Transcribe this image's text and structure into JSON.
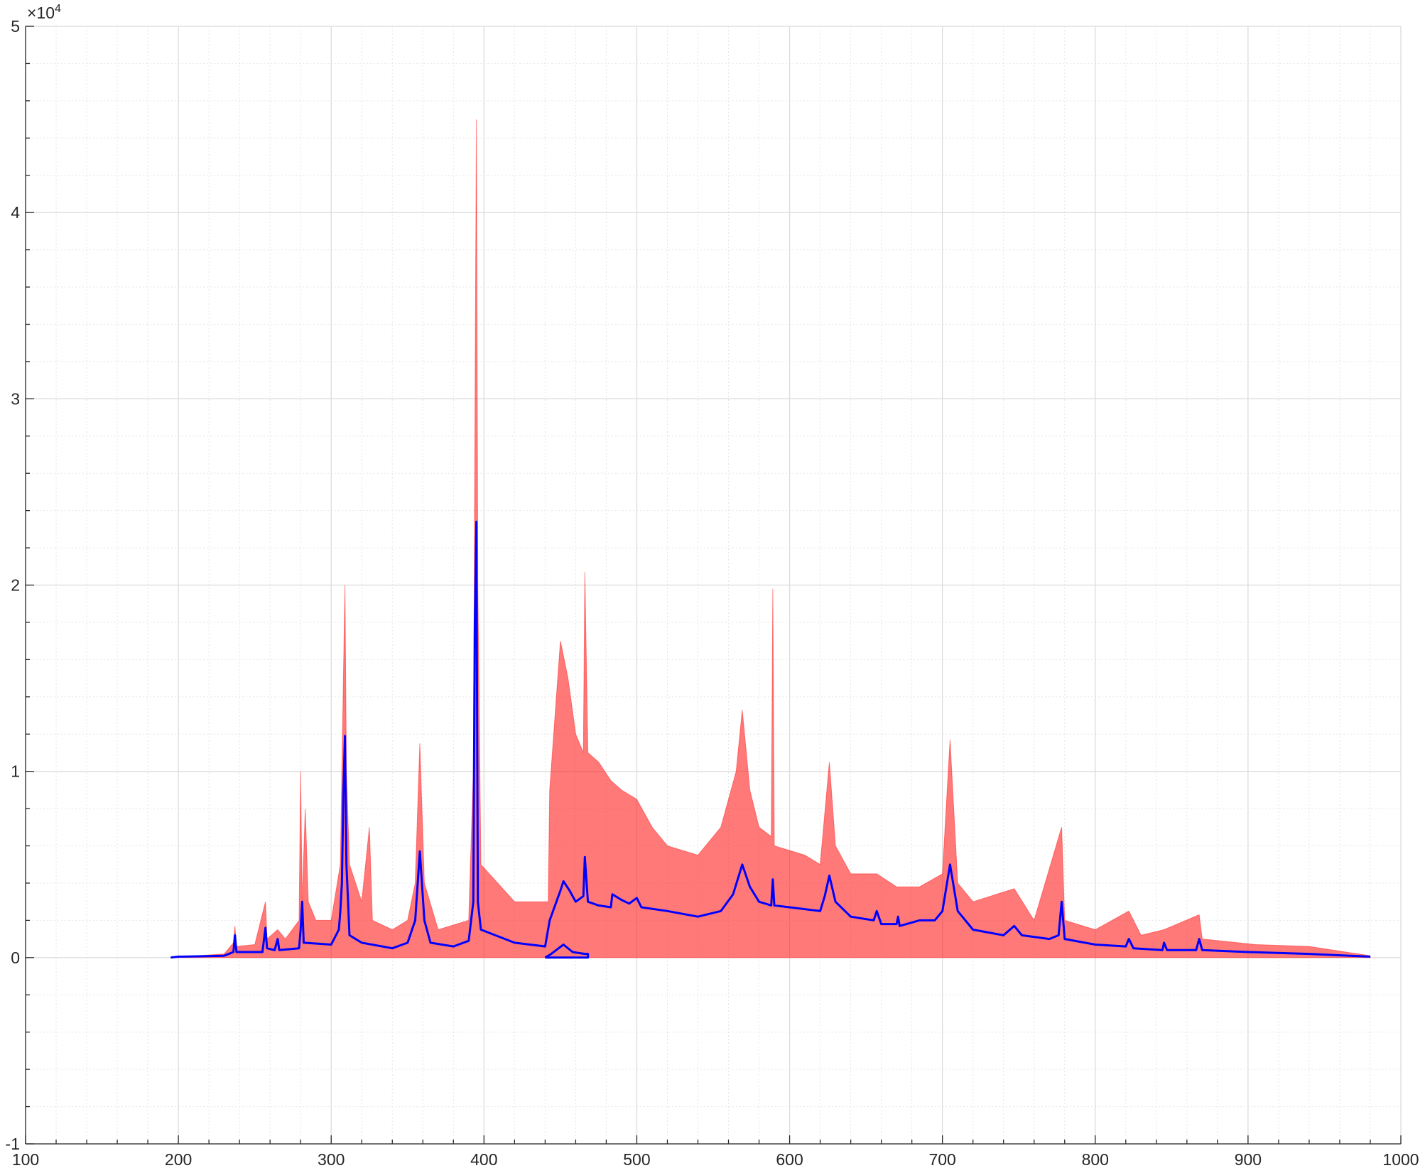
{
  "chart_data": {
    "type": "line",
    "y_multiplier": {
      "base": "×10",
      "exponent": "4"
    },
    "xlim": [
      100,
      1000
    ],
    "xticks": [
      100,
      200,
      300,
      400,
      500,
      600,
      700,
      800,
      900,
      1000
    ],
    "xminorticks": [
      120,
      140,
      160,
      180,
      220,
      240,
      260,
      280,
      320,
      340,
      360,
      380,
      420,
      440,
      460,
      480,
      520,
      540,
      560,
      580,
      620,
      640,
      660,
      680,
      720,
      740,
      760,
      780,
      820,
      840,
      860,
      880,
      920,
      940,
      960,
      980
    ],
    "ylim": [
      -1,
      5
    ],
    "yticks": [
      -1,
      0,
      1,
      2,
      3,
      4,
      5
    ],
    "yminorticks": [
      -0.8,
      -0.6,
      -0.4,
      -0.2,
      0.2,
      0.4,
      0.6,
      0.8,
      1.2,
      1.4,
      1.6,
      1.8,
      2.2,
      2.4,
      2.6,
      2.8,
      3.2,
      3.4,
      3.6,
      3.8,
      4.2,
      4.4,
      4.6,
      4.8
    ],
    "grid": true,
    "minor_grid": true,
    "series": [
      {
        "color": "#ff2020",
        "fill": true,
        "x": [
          195,
          230,
          236,
          237,
          238,
          250,
          257,
          258,
          265,
          270,
          279,
          280,
          281,
          283,
          285,
          290,
          300,
          306,
          308,
          309,
          310,
          312,
          320,
          325,
          327,
          340,
          350,
          355,
          358,
          361,
          370,
          390,
          393,
          395,
          396,
          398,
          420,
          440,
          442,
          443,
          450,
          455,
          460,
          465,
          466,
          468,
          475,
          483,
          490,
          500,
          510,
          520,
          540,
          555,
          565,
          569,
          574,
          580,
          588,
          589,
          590,
          610,
          620,
          626,
          630,
          640,
          657,
          670,
          685,
          700,
          705,
          710,
          720,
          747,
          760,
          778,
          780,
          800,
          822,
          830,
          845,
          868,
          870,
          905,
          940,
          980
        ],
        "values": [
          0,
          0.02,
          0.08,
          0.17,
          0.06,
          0.07,
          0.3,
          0.1,
          0.15,
          0.1,
          0.2,
          1.0,
          0.3,
          0.8,
          0.3,
          0.2,
          0.2,
          0.5,
          1.5,
          2.0,
          1.0,
          0.5,
          0.3,
          0.7,
          0.2,
          0.15,
          0.2,
          0.4,
          1.15,
          0.4,
          0.15,
          0.2,
          1.0,
          4.5,
          2.0,
          0.5,
          0.3,
          0.3,
          0.3,
          0.9,
          1.7,
          1.5,
          1.2,
          1.1,
          2.07,
          1.1,
          1.05,
          0.95,
          0.9,
          0.85,
          0.7,
          0.6,
          0.55,
          0.7,
          1.0,
          1.33,
          0.9,
          0.7,
          0.65,
          1.98,
          0.6,
          0.55,
          0.5,
          1.05,
          0.6,
          0.45,
          0.45,
          0.38,
          0.38,
          0.45,
          1.17,
          0.4,
          0.3,
          0.37,
          0.2,
          0.7,
          0.2,
          0.15,
          0.25,
          0.12,
          0.15,
          0.23,
          0.1,
          0.07,
          0.06,
          0.01
        ]
      },
      {
        "color": "#0000ff",
        "fill": false,
        "x": [
          195,
          200,
          230,
          236,
          237,
          238,
          255,
          257,
          258,
          263,
          265,
          266,
          279,
          280,
          281,
          282,
          300,
          305,
          306,
          307,
          308,
          309,
          310,
          312,
          320,
          340,
          350,
          355,
          358,
          361,
          365,
          380,
          390,
          393,
          394,
          395,
          396,
          398,
          420,
          440,
          443,
          450,
          452,
          456,
          460,
          465,
          466,
          468,
          475,
          483,
          484,
          490,
          495,
          500,
          503,
          520,
          540,
          555,
          563,
          569,
          574,
          580,
          588,
          589,
          590,
          620,
          623,
          626,
          630,
          640,
          655,
          657,
          660,
          670,
          671,
          672,
          685,
          695,
          700,
          705,
          710,
          720,
          740,
          747,
          752,
          770,
          776,
          778,
          780,
          800,
          820,
          822,
          825,
          844,
          845,
          847,
          866,
          868,
          870,
          900,
          940,
          980
        ],
        "values": [
          0,
          0.005,
          0.01,
          0.03,
          0.12,
          0.03,
          0.03,
          0.16,
          0.05,
          0.04,
          0.1,
          0.04,
          0.05,
          0.15,
          0.3,
          0.08,
          0.07,
          0.15,
          0.25,
          0.4,
          0.88,
          1.19,
          0.5,
          0.12,
          0.08,
          0.05,
          0.08,
          0.2,
          0.57,
          0.2,
          0.08,
          0.06,
          0.09,
          0.3,
          1.78,
          2.34,
          0.3,
          0.15,
          0.08,
          0.06,
          0.2,
          0.36,
          0.41,
          0.36,
          0.3,
          0.33,
          0.54,
          0.3,
          0.28,
          0.27,
          0.34,
          0.31,
          0.29,
          0.32,
          0.27,
          0.25,
          0.22,
          0.25,
          0.34,
          0.5,
          0.38,
          0.3,
          0.28,
          0.42,
          0.28,
          0.25,
          0.33,
          0.44,
          0.3,
          0.22,
          0.2,
          0.25,
          0.18,
          0.18,
          0.22,
          0.17,
          0.2,
          0.2,
          0.25,
          0.5,
          0.25,
          0.15,
          0.12,
          0.17,
          0.12,
          0.1,
          0.12,
          0.3,
          0.1,
          0.07,
          0.06,
          0.1,
          0.05,
          0.04,
          0.08,
          0.04,
          0.04,
          0.1,
          0.04,
          0.03,
          0.02,
          0.005
        ]
      },
      {
        "color": "#0000ff",
        "fill": false,
        "x": [
          440,
          444,
          452,
          458,
          466,
          468,
          468,
          440
        ],
        "values": [
          0,
          0.02,
          0.07,
          0.03,
          0.02,
          0.02,
          0,
          0
        ]
      }
    ]
  }
}
